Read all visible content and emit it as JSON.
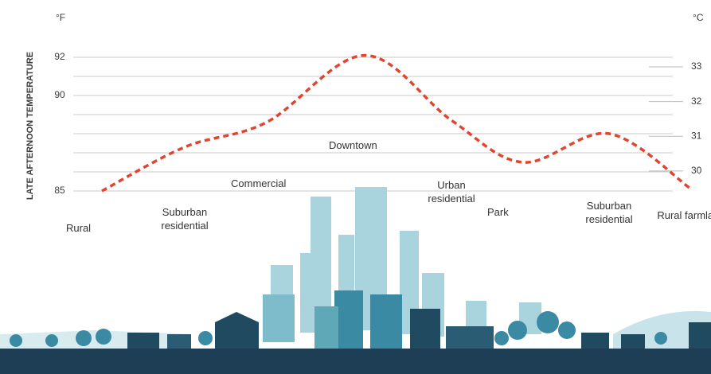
{
  "chart_data": {
    "type": "line",
    "y_label": "LATE AFTERNOON TEMPERATURE",
    "y_unit": "°F",
    "y2_unit": "°C",
    "categories": [
      "Rural",
      "Suburban residential",
      "Commercial",
      "Downtown",
      "Urban residential",
      "Park",
      "Suburban residential",
      "Rural farmland"
    ],
    "series": [
      {
        "name": "Late afternoon temperature",
        "color": "#e0462f",
        "values": [
          85.0,
          87.3,
          88.6,
          92.1,
          88.7,
          86.5,
          88.0,
          85.1
        ]
      }
    ],
    "ylim": [
      84.5,
      92.5
    ],
    "yticks": [
      85,
      90,
      92
    ],
    "ygrid": [
      85,
      86,
      87,
      88,
      89,
      90,
      91,
      92
    ],
    "y2lim": [
      29.15,
      33.55
    ],
    "y2ticks": [
      30,
      31,
      32,
      33
    ],
    "grid": true,
    "dashed": true
  }
}
